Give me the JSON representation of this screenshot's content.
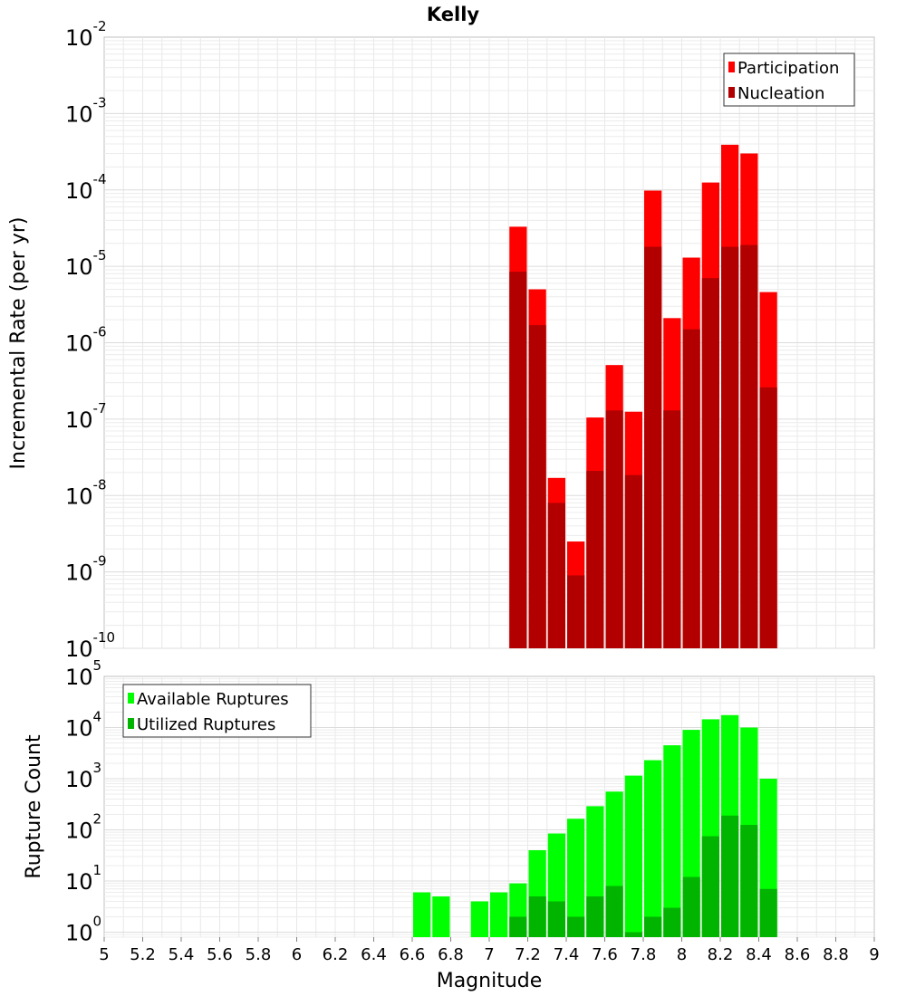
{
  "chart_data": [
    {
      "type": "bar",
      "title": "Kelly",
      "xlabel": "",
      "ylabel": "Incremental Rate (per yr)",
      "yscale": "log",
      "ylim": [
        1e-10,
        0.01
      ],
      "xlim": [
        5,
        9
      ],
      "y_tick_labels": [
        {
          "base": "10",
          "exp": "-10"
        },
        {
          "base": "10",
          "exp": "-9"
        },
        {
          "base": "10",
          "exp": "-8"
        },
        {
          "base": "10",
          "exp": "-7"
        },
        {
          "base": "10",
          "exp": "-6"
        },
        {
          "base": "10",
          "exp": "-5"
        },
        {
          "base": "10",
          "exp": "-4"
        },
        {
          "base": "10",
          "exp": "-3"
        },
        {
          "base": "10",
          "exp": "-2"
        }
      ],
      "legend": {
        "position": "top-right",
        "entries": [
          "Participation",
          "Nucleation"
        ]
      },
      "grid": true,
      "x": [
        7.15,
        7.25,
        7.35,
        7.45,
        7.55,
        7.65,
        7.75,
        7.85,
        7.95,
        8.05,
        8.15,
        8.25,
        8.35,
        8.45
      ],
      "series": [
        {
          "name": "Participation",
          "color": "#ff0000",
          "values": [
            3.3e-05,
            5e-06,
            1.7e-08,
            2.5e-09,
            1.05e-07,
            5.1e-07,
            1.25e-07,
            9.8e-05,
            2.1e-06,
            1.3e-05,
            0.000125,
            0.00039,
            0.0003,
            4.6e-06
          ]
        },
        {
          "name": "Nucleation",
          "color": "#b20000",
          "values": [
            8.5e-06,
            1.7e-06,
            8e-09,
            9e-10,
            2.1e-08,
            1.3e-07,
            1.85e-08,
            1.8e-05,
            1.3e-07,
            1.5e-06,
            7e-06,
            1.8e-05,
            1.9e-05,
            2.6e-07
          ]
        }
      ]
    },
    {
      "type": "bar",
      "title": "",
      "xlabel": "Magnitude",
      "ylabel": "Rupture Count",
      "yscale": "log",
      "ylim": [
        0.8,
        100000
      ],
      "xlim": [
        5,
        9
      ],
      "y_tick_labels": [
        {
          "base": "10",
          "exp": "0"
        },
        {
          "base": "10",
          "exp": "1"
        },
        {
          "base": "10",
          "exp": "2"
        },
        {
          "base": "10",
          "exp": "3"
        },
        {
          "base": "10",
          "exp": "4"
        },
        {
          "base": "10",
          "exp": "5"
        }
      ],
      "x_tick_labels": [
        "5",
        "5.2",
        "5.4",
        "5.6",
        "5.8",
        "6",
        "6.2",
        "6.4",
        "6.6",
        "6.8",
        "7",
        "7.2",
        "7.4",
        "7.6",
        "7.8",
        "8",
        "8.2",
        "8.4",
        "8.6",
        "8.8",
        "9"
      ],
      "legend": {
        "position": "top-left",
        "entries": [
          "Available Ruptures",
          "Utilized Ruptures"
        ]
      },
      "grid": true,
      "x": [
        6.65,
        6.75,
        6.95,
        7.05,
        7.15,
        7.25,
        7.35,
        7.45,
        7.55,
        7.65,
        7.75,
        7.85,
        7.95,
        8.05,
        8.15,
        8.25,
        8.35,
        8.45
      ],
      "series": [
        {
          "name": "Available Ruptures",
          "color": "#00ff00",
          "values": [
            6,
            5,
            4,
            6,
            9,
            40,
            85,
            165,
            290,
            560,
            1150,
            2300,
            4500,
            9000,
            14500,
            17500,
            10000,
            1000
          ]
        },
        {
          "name": "Utilized Ruptures",
          "color": "#00b400",
          "values": [
            null,
            null,
            null,
            null,
            2,
            5,
            4,
            2,
            5,
            8,
            1,
            2,
            3,
            12,
            75,
            190,
            125,
            7
          ]
        }
      ]
    }
  ]
}
